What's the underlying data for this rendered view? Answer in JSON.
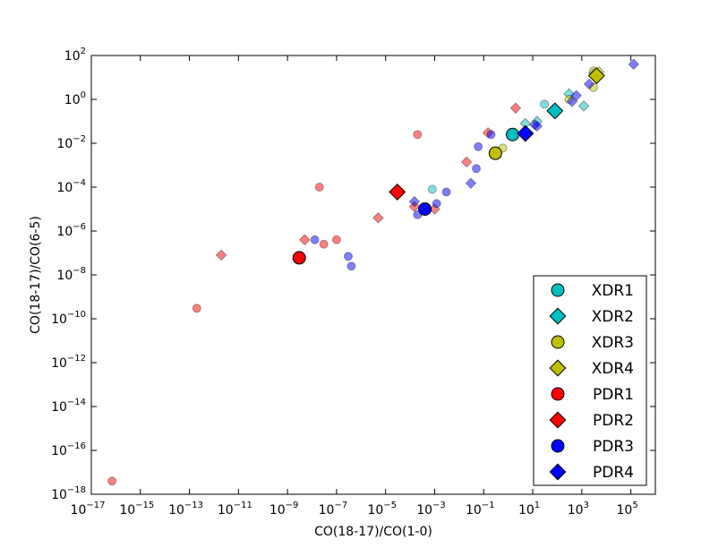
{
  "chart_data": {
    "type": "scatter",
    "xlabel": "CO(18-17)/CO(1-0)",
    "ylabel": "CO(18-17)/CO(6-5)",
    "x_scale": "log",
    "y_scale": "log",
    "xlim_exp": [
      -17,
      6
    ],
    "ylim_exp": [
      -18,
      2
    ],
    "x_ticks_exp": [
      -17,
      -15,
      -13,
      -11,
      -9,
      -7,
      -5,
      -3,
      -1,
      1,
      3,
      5
    ],
    "y_ticks_exp": [
      -18,
      -16,
      -14,
      -12,
      -10,
      -8,
      -6,
      -4,
      -2,
      0,
      2
    ],
    "tick_base": "10",
    "grid": false,
    "legend_position": "lower-right",
    "series": [
      {
        "name": "XDR1",
        "marker": "circle",
        "color": "#00bfbf",
        "highlight": [
          1.5,
          0.025
        ],
        "points": [
          [
            0.0008,
            8e-05
          ],
          [
            30,
            0.6
          ]
        ]
      },
      {
        "name": "XDR2",
        "marker": "diamond",
        "color": "#00bfbf",
        "highlight": [
          80,
          0.3
        ],
        "points": [
          [
            5,
            0.08
          ],
          [
            15,
            0.1
          ],
          [
            300,
            1.8
          ],
          [
            1200,
            0.5
          ],
          [
            3000,
            15
          ]
        ]
      },
      {
        "name": "XDR3",
        "marker": "circle",
        "color": "#bfbf00",
        "highlight": [
          0.3,
          0.0035
        ],
        "points": [
          [
            0.6,
            0.006
          ],
          [
            300,
            1
          ],
          [
            3000,
            3.5
          ],
          [
            3000,
            20
          ]
        ]
      },
      {
        "name": "XDR4",
        "marker": "diamond",
        "color": "#bfbf00",
        "highlight": [
          4000,
          12
        ],
        "points": [
          [
            5000,
            18
          ]
        ]
      },
      {
        "name": "PDR1",
        "marker": "circle",
        "color": "#ff0000",
        "highlight": [
          3e-09,
          6e-08
        ],
        "points": [
          [
            7e-17,
            4e-18
          ],
          [
            2e-13,
            3e-10
          ],
          [
            2e-08,
            0.0001
          ],
          [
            3e-08,
            2.5e-07
          ],
          [
            1e-07,
            4e-07
          ],
          [
            0.0002,
            0.025
          ]
        ]
      },
      {
        "name": "PDR2",
        "marker": "diamond",
        "color": "#ff0000",
        "highlight": [
          3e-05,
          6e-05
        ],
        "points": [
          [
            2e-12,
            8e-08
          ],
          [
            5e-09,
            4e-07
          ],
          [
            5e-06,
            4e-06
          ],
          [
            0.00015,
            1.3e-05
          ],
          [
            0.001,
            1e-05
          ],
          [
            0.02,
            0.0014
          ],
          [
            0.15,
            0.03
          ],
          [
            2,
            0.4
          ]
        ]
      },
      {
        "name": "PDR3",
        "marker": "circle",
        "color": "#0000ff",
        "highlight": [
          0.0004,
          1e-05
        ],
        "points": [
          [
            4e-07,
            2.5e-08
          ],
          [
            3e-07,
            7e-08
          ],
          [
            1.3e-08,
            4e-07
          ],
          [
            0.0002,
            5.5e-06
          ],
          [
            0.0012,
            1.8e-05
          ],
          [
            0.003,
            6e-05
          ],
          [
            0.05,
            0.0007
          ],
          [
            0.06,
            0.007
          ],
          [
            0.2,
            0.025
          ]
        ]
      },
      {
        "name": "PDR4",
        "marker": "diamond",
        "color": "#0000ff",
        "highlight": [
          5,
          0.028
        ],
        "points": [
          [
            0.00015,
            2.2e-05
          ],
          [
            0.03,
            0.00015
          ],
          [
            12,
            0.07
          ],
          [
            15,
            0.06
          ],
          [
            400,
            0.8
          ],
          [
            600,
            1.5
          ],
          [
            2000,
            5
          ],
          [
            130000,
            40
          ]
        ]
      }
    ]
  }
}
